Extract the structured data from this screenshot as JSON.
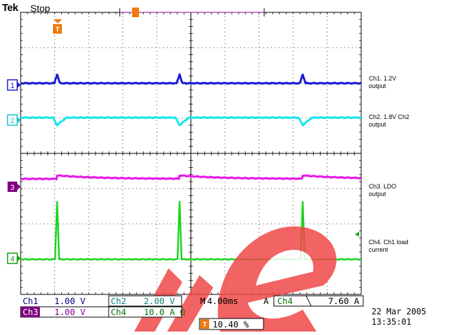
{
  "header": {
    "brand": "Tek",
    "status": "Stop"
  },
  "channels": [
    {
      "marker": "1",
      "label": "Ch1. 1.2V\noutput",
      "color": "#1a1ad6"
    },
    {
      "marker": "2",
      "label": "Ch2. 1.8V Ch2\noutput",
      "color": "#16e6ee"
    },
    {
      "marker": "3",
      "label": "Ch3. LDO\noutput",
      "color": "#e619e6"
    },
    {
      "marker": "4",
      "label": "Ch4. Ch1 load\ncurrent",
      "color": "#1ed41e"
    }
  ],
  "readouts": {
    "ch1_name": "Ch1",
    "ch1_value": "1.00 V",
    "ch2_name": "Ch2",
    "ch2_value": "2.00 V",
    "ch3_name": "Ch3",
    "ch3_value": "1.00 V",
    "ch4_name": "Ch4",
    "ch4_value": "10.0 A Ω",
    "timebase_prefix": "M",
    "timebase": "4.00ms",
    "trigger_mode": "A",
    "trigger_source": "Ch4",
    "trigger_slope": "╲",
    "trigger_level": "7.60 A",
    "trigger_position": "10.40 %"
  },
  "timestamp": {
    "date": "22 Mar 2005",
    "time": "13:35:01"
  },
  "trigger_icon": "trigger-T-icon",
  "colors": {
    "grid": "#000000",
    "trigger": "#f07a10",
    "watermark": "#f04040"
  }
}
